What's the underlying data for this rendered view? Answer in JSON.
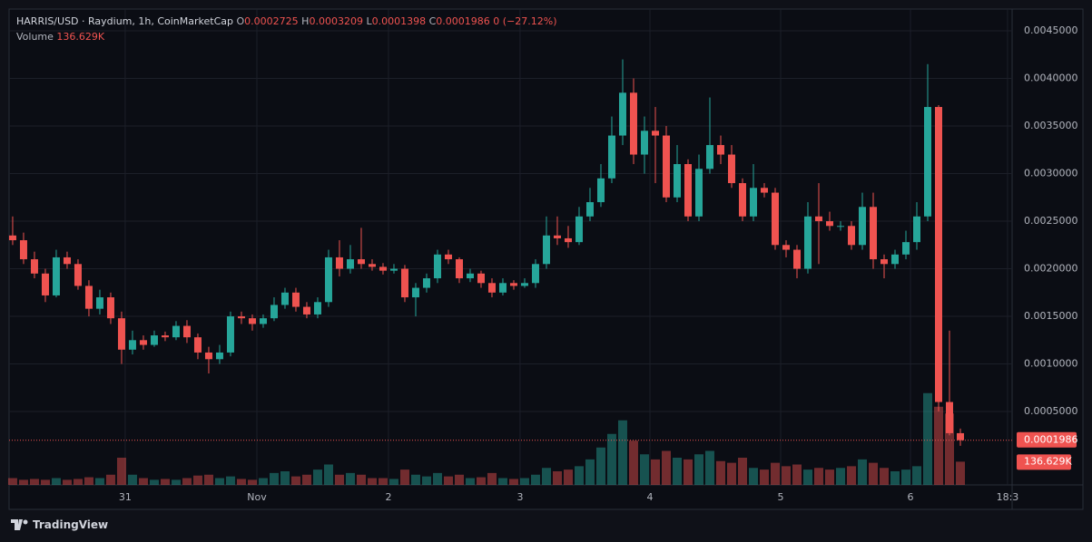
{
  "header": {
    "symbol": "HARRIS/USD · Raydium, 1h, CoinMarketCap",
    "ohlc": [
      {
        "label": "O",
        "value": "0.0002725"
      },
      {
        "label": "H",
        "value": "0.0003209"
      },
      {
        "label": "L",
        "value": "0.0001398"
      },
      {
        "label": "C",
        "value": "0.0001986"
      }
    ],
    "change": "0 (−27.12%)",
    "volume_label": "Volume",
    "volume_value": "136.629K"
  },
  "footer": {
    "brand": "TradingView"
  },
  "chart_data": {
    "type": "candlestick",
    "up_color": "#26a69a",
    "down_color": "#ef5350",
    "grid": true,
    "xlim": [
      -0.33,
      91.75
    ],
    "xticks": [
      {
        "value": 10.33,
        "label": "31"
      },
      {
        "value": 22.42,
        "label": "Nov"
      },
      {
        "value": 34.5,
        "label": "2"
      },
      {
        "value": 46.58,
        "label": "3"
      },
      {
        "value": 58.5,
        "label": "4"
      },
      {
        "value": 70.5,
        "label": "5"
      },
      {
        "value": 82.42,
        "label": "6"
      },
      {
        "value": 91.33,
        "label": "18:3"
      }
    ],
    "ylim": [
      -0.000271,
      0.004729
    ],
    "yticks": [
      {
        "value": 0.0005,
        "label": "0.0005000"
      },
      {
        "value": 0.001,
        "label": "0.0010000"
      },
      {
        "value": 0.0015,
        "label": "0.0015000"
      },
      {
        "value": 0.002,
        "label": "0.0020000"
      },
      {
        "value": 0.0025,
        "label": "0.0025000"
      },
      {
        "value": 0.003,
        "label": "0.0030000"
      },
      {
        "value": 0.0035,
        "label": "0.0035000"
      },
      {
        "value": 0.004,
        "label": "0.0040000"
      },
      {
        "value": 0.0045,
        "label": "0.0045000"
      }
    ],
    "volume_ylim": [
      0,
      2800000
    ],
    "open": [
      0.00235,
      0.0023,
      0.0021,
      0.00195,
      0.00172,
      0.00212,
      0.00205,
      0.00182,
      0.00158,
      0.0017,
      0.00148,
      0.00115,
      0.00125,
      0.0012,
      0.0013,
      0.00128,
      0.0014,
      0.00128,
      0.00112,
      0.00105,
      0.00112,
      0.0015,
      0.00148,
      0.00142,
      0.00148,
      0.00162,
      0.00175,
      0.0016,
      0.00152,
      0.00165,
      0.00212,
      0.002,
      0.0021,
      0.00205,
      0.00202,
      0.00198,
      0.002,
      0.0017,
      0.0018,
      0.0019,
      0.00215,
      0.0021,
      0.0019,
      0.00195,
      0.00185,
      0.00175,
      0.00185,
      0.00182,
      0.00185,
      0.00205,
      0.00235,
      0.00232,
      0.00228,
      0.00255,
      0.0027,
      0.00295,
      0.0034,
      0.00385,
      0.0032,
      0.00345,
      0.0034,
      0.00275,
      0.0031,
      0.00255,
      0.00305,
      0.0033,
      0.0032,
      0.0029,
      0.00255,
      0.00285,
      0.0028,
      0.00225,
      0.0022,
      0.002,
      0.00255,
      0.0025,
      0.00245,
      0.00245,
      0.00225,
      0.00265,
      0.0021,
      0.00205,
      0.00215,
      0.00228,
      0.00255,
      0.0037,
      0.0006,
      0.0002725
    ],
    "high": [
      0.00255,
      0.00238,
      0.00218,
      0.002,
      0.0022,
      0.00218,
      0.0021,
      0.00188,
      0.00178,
      0.00175,
      0.00155,
      0.00135,
      0.0013,
      0.00135,
      0.00134,
      0.00145,
      0.00146,
      0.00132,
      0.00118,
      0.0012,
      0.00155,
      0.00155,
      0.00152,
      0.00152,
      0.0017,
      0.0018,
      0.0018,
      0.00165,
      0.0017,
      0.0022,
      0.0023,
      0.00225,
      0.00243,
      0.0021,
      0.00206,
      0.00205,
      0.00204,
      0.00185,
      0.00195,
      0.0022,
      0.0022,
      0.00212,
      0.002,
      0.00198,
      0.0019,
      0.0019,
      0.00188,
      0.0019,
      0.0021,
      0.00255,
      0.00255,
      0.00245,
      0.00265,
      0.00285,
      0.0031,
      0.0036,
      0.0042,
      0.004,
      0.0036,
      0.0037,
      0.0035,
      0.0033,
      0.00315,
      0.0032,
      0.0038,
      0.0034,
      0.0033,
      0.00295,
      0.0031,
      0.0029,
      0.00285,
      0.0023,
      0.00225,
      0.0027,
      0.0029,
      0.0026,
      0.0025,
      0.0025,
      0.0028,
      0.0028,
      0.00215,
      0.0022,
      0.0024,
      0.0027,
      0.00415,
      0.00372,
      0.00135,
      0.0003209
    ],
    "low": [
      0.00225,
      0.00205,
      0.0019,
      0.00165,
      0.0017,
      0.002,
      0.00178,
      0.0015,
      0.00152,
      0.00142,
      0.001,
      0.0011,
      0.00115,
      0.00118,
      0.00124,
      0.00125,
      0.00122,
      0.00105,
      0.0009,
      0.001,
      0.00108,
      0.00142,
      0.00135,
      0.00138,
      0.00145,
      0.00158,
      0.00155,
      0.00148,
      0.00148,
      0.0016,
      0.00192,
      0.00195,
      0.002,
      0.00198,
      0.00194,
      0.00195,
      0.00165,
      0.0015,
      0.00175,
      0.00185,
      0.00205,
      0.00185,
      0.00186,
      0.0018,
      0.0017,
      0.00172,
      0.00178,
      0.0018,
      0.0018,
      0.002,
      0.00225,
      0.00222,
      0.00225,
      0.0025,
      0.00265,
      0.0029,
      0.0033,
      0.0031,
      0.003,
      0.0029,
      0.0027,
      0.0027,
      0.0025,
      0.0025,
      0.003,
      0.0031,
      0.00285,
      0.0025,
      0.0025,
      0.00275,
      0.0022,
      0.00212,
      0.0019,
      0.00195,
      0.00205,
      0.0024,
      0.0024,
      0.0022,
      0.0022,
      0.002,
      0.0019,
      0.002,
      0.0021,
      0.0022,
      0.0025,
      0.0005,
      0.00025,
      0.0001398
    ],
    "close": [
      0.0023,
      0.0021,
      0.00195,
      0.00172,
      0.00212,
      0.00205,
      0.00182,
      0.00158,
      0.0017,
      0.00148,
      0.00115,
      0.00125,
      0.0012,
      0.0013,
      0.00128,
      0.0014,
      0.00128,
      0.00112,
      0.00105,
      0.00112,
      0.0015,
      0.00148,
      0.00142,
      0.00148,
      0.00162,
      0.00175,
      0.0016,
      0.00152,
      0.00165,
      0.00212,
      0.002,
      0.0021,
      0.00205,
      0.00202,
      0.00198,
      0.002,
      0.0017,
      0.0018,
      0.0019,
      0.00215,
      0.0021,
      0.0019,
      0.00195,
      0.00185,
      0.00175,
      0.00185,
      0.00182,
      0.00185,
      0.00205,
      0.00235,
      0.00232,
      0.00228,
      0.00255,
      0.0027,
      0.00295,
      0.0034,
      0.00385,
      0.0032,
      0.00345,
      0.0034,
      0.00275,
      0.0031,
      0.00255,
      0.00305,
      0.0033,
      0.0032,
      0.0029,
      0.00255,
      0.00285,
      0.0028,
      0.00225,
      0.0022,
      0.002,
      0.00255,
      0.0025,
      0.00245,
      0.00245,
      0.00225,
      0.00265,
      0.0021,
      0.00205,
      0.00215,
      0.00228,
      0.00255,
      0.0037,
      0.0006,
      0.0002725,
      0.0001986
    ],
    "volume": [
      40000,
      30000,
      35000,
      30000,
      40000,
      30000,
      35000,
      45000,
      40000,
      60000,
      160000,
      60000,
      40000,
      30000,
      35000,
      30000,
      40000,
      55000,
      60000,
      40000,
      50000,
      35000,
      30000,
      40000,
      70000,
      80000,
      50000,
      60000,
      90000,
      120000,
      60000,
      70000,
      60000,
      40000,
      40000,
      35000,
      90000,
      60000,
      50000,
      70000,
      50000,
      60000,
      40000,
      45000,
      70000,
      40000,
      35000,
      40000,
      60000,
      100000,
      80000,
      90000,
      110000,
      150000,
      220000,
      300000,
      380000,
      260000,
      180000,
      150000,
      200000,
      160000,
      150000,
      180000,
      200000,
      140000,
      130000,
      160000,
      100000,
      90000,
      130000,
      110000,
      120000,
      90000,
      100000,
      90000,
      100000,
      110000,
      150000,
      130000,
      100000,
      80000,
      90000,
      110000,
      540000,
      460000,
      420000,
      136629
    ]
  }
}
